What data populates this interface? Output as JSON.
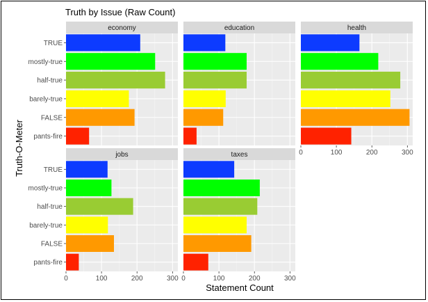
{
  "chart_data": {
    "type": "bar",
    "orientation": "horizontal",
    "title": "Truth by Issue (Raw Count)",
    "xlabel": "Statement Count",
    "ylabel": "Truth-O-Meter",
    "xlim": [
      0,
      315
    ],
    "x_ticks": [
      0,
      100,
      200,
      300
    ],
    "grid": true,
    "categories": [
      "TRUE",
      "mostly-true",
      "half-true",
      "barely-true",
      "FALSE",
      "pants-fire"
    ],
    "category_colors": [
      "#0D3BFF",
      "#00FF00",
      "#99CC33",
      "#FFFF00",
      "#FF9900",
      "#FF2200"
    ],
    "facets": [
      {
        "name": "economy",
        "values": [
          209,
          251,
          279,
          177,
          193,
          65
        ]
      },
      {
        "name": "education",
        "values": [
          118,
          178,
          178,
          119,
          112,
          37
        ]
      },
      {
        "name": "health",
        "values": [
          165,
          218,
          280,
          252,
          306,
          142
        ]
      },
      {
        "name": "jobs",
        "values": [
          117,
          128,
          189,
          118,
          135,
          36
        ]
      },
      {
        "name": "taxes",
        "values": [
          143,
          215,
          208,
          178,
          191,
          70
        ]
      }
    ]
  }
}
